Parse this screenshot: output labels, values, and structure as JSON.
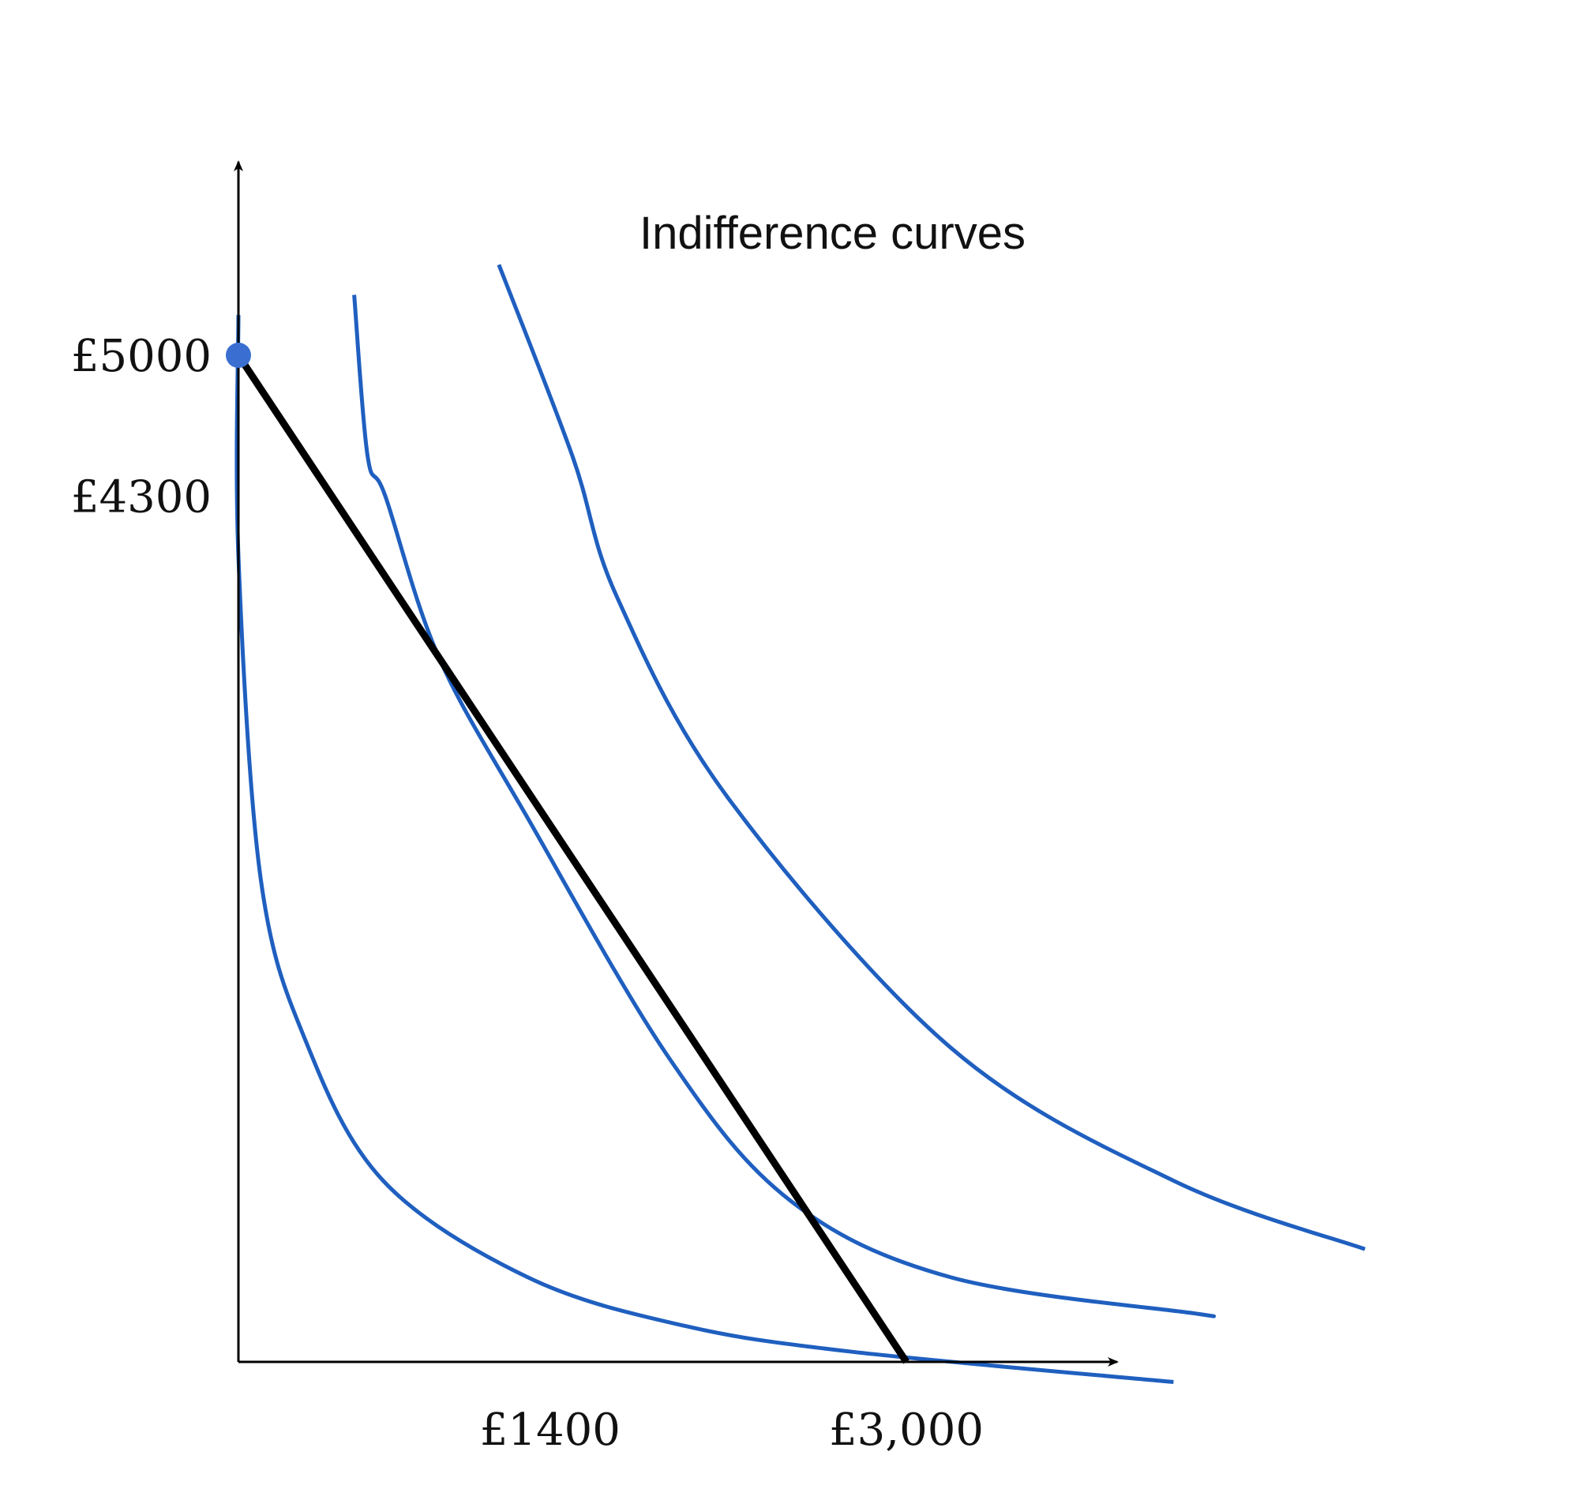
{
  "chart_data": {
    "type": "line",
    "title": "",
    "xlabel": "",
    "ylabel": "",
    "annotation": "Indifference curves",
    "x_ticks": [
      {
        "value": 1400,
        "label": "£1400"
      },
      {
        "value": 3000,
        "label": "£3,000"
      }
    ],
    "y_ticks": [
      {
        "value": 5000,
        "label": "£5000"
      },
      {
        "value": 4300,
        "label": "£4300"
      }
    ],
    "budget_line": {
      "points": [
        [
          0,
          5000
        ],
        [
          3000,
          0
        ]
      ],
      "color": "#000000"
    },
    "endowment_point": {
      "x": 0,
      "y": 5000,
      "color": "#3a6fd1"
    },
    "indifference_curves": [
      {
        "points": [
          [
            0,
            5200
          ],
          [
            0,
            4000
          ],
          [
            100,
            2400
          ],
          [
            300,
            1600
          ],
          [
            650,
            900
          ],
          [
            1300,
            420
          ],
          [
            2000,
            180
          ],
          [
            2760,
            50
          ],
          [
            4200,
            -100
          ]
        ],
        "color": "#1f5fbf"
      },
      {
        "points": [
          [
            520,
            5300
          ],
          [
            580,
            4500
          ],
          [
            660,
            4300
          ],
          [
            900,
            3500
          ],
          [
            1300,
            2700
          ],
          [
            1940,
            1500
          ],
          [
            2480,
            800
          ],
          [
            3200,
            420
          ],
          [
            4300,
            240
          ],
          [
            4300,
            240
          ]
        ],
        "color": "#1f5fbf"
      },
      {
        "points": [
          [
            1170,
            5450
          ],
          [
            1500,
            4500
          ],
          [
            1700,
            3800
          ],
          [
            2200,
            2800
          ],
          [
            3200,
            1560
          ],
          [
            4200,
            900
          ],
          [
            5060,
            560
          ]
        ],
        "color": "#1f5fbf"
      }
    ],
    "grid": false,
    "legend": "none"
  }
}
